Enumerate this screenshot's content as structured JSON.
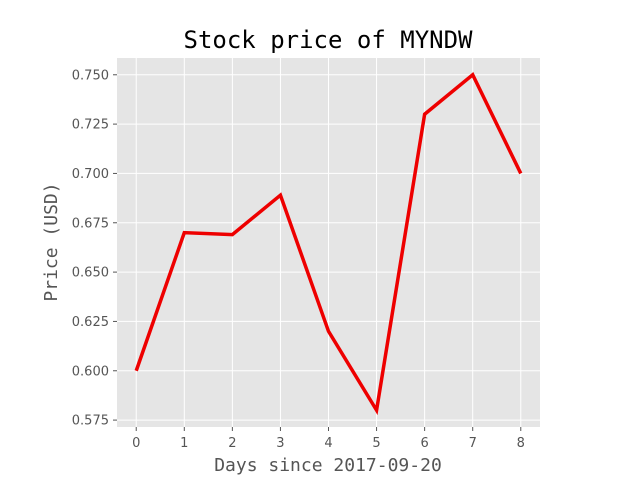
{
  "chart_data": {
    "type": "line",
    "title": "Stock price of MYNDW",
    "xlabel": "Days since 2017-09-20",
    "ylabel": "Price (USD)",
    "x": [
      0,
      1,
      2,
      3,
      4,
      5,
      6,
      7,
      8
    ],
    "series": [
      {
        "values": [
          0.6,
          0.67,
          0.669,
          0.689,
          0.62,
          0.58,
          0.73,
          0.75,
          0.7
        ],
        "color": "#ee0000"
      }
    ],
    "xticks": [
      "0",
      "1",
      "2",
      "3",
      "4",
      "5",
      "6",
      "7",
      "8"
    ],
    "yticks": [
      "0.575",
      "0.600",
      "0.625",
      "0.650",
      "0.675",
      "0.700",
      "0.725",
      "0.750"
    ],
    "xlim": [
      -0.4,
      8.4
    ],
    "ylim": [
      0.5715,
      0.7585
    ],
    "grid": true,
    "background_color": "#e5e5e5",
    "grid_color": "#ffffff"
  }
}
